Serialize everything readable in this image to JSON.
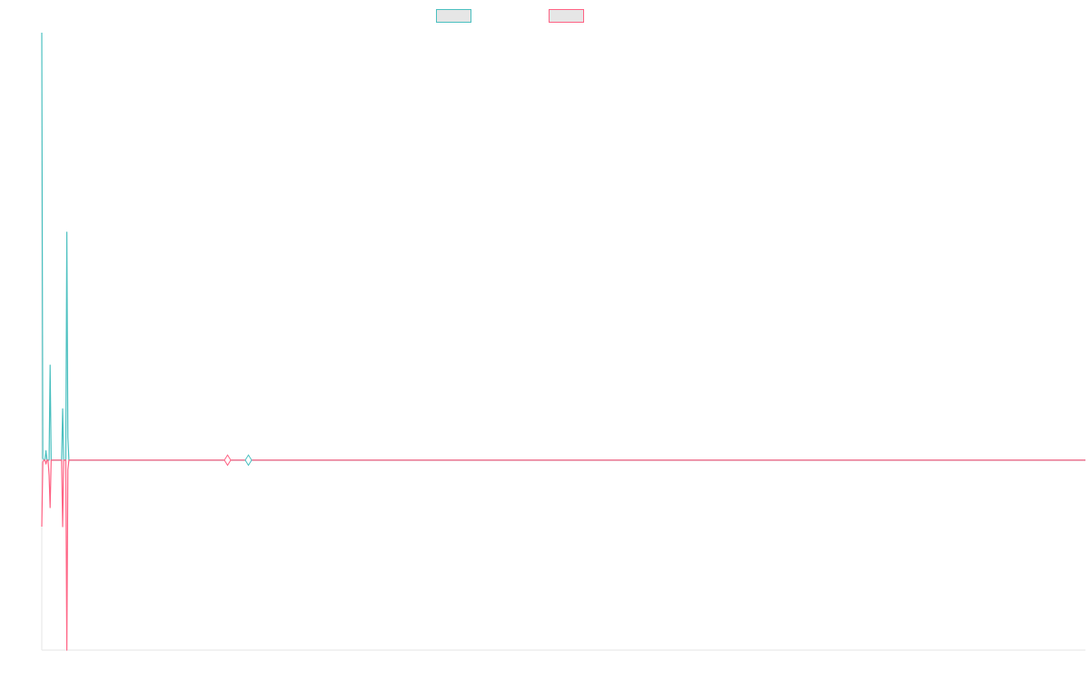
{
  "chart_data": {
    "type": "line",
    "title": "",
    "xlabel": "",
    "ylabel": "",
    "grid": false,
    "legend_placement": "top-center",
    "ylim": [
      -1.0,
      2.25
    ],
    "x": [
      0,
      0.5,
      1,
      1.5,
      2,
      2.5,
      3,
      3.5,
      4,
      4.5,
      5,
      5.5,
      6,
      6.5,
      7,
      7.5,
      8,
      8.5,
      9,
      9.5,
      10,
      10.5,
      11,
      11.5,
      12,
      12.5,
      13,
      13.5,
      14,
      14.5,
      15,
      15.5,
      16,
      16.5,
      17,
      17.5,
      18,
      18.5,
      19,
      19.5,
      20,
      20.5,
      21,
      21.5,
      22,
      30,
      40,
      50,
      60,
      70,
      80,
      90,
      100,
      110,
      120,
      130,
      140,
      150,
      160,
      170,
      180,
      190,
      200,
      210,
      220,
      230,
      240,
      250,
      260,
      270,
      280,
      290,
      300,
      350,
      400,
      450,
      500
    ],
    "series": [
      {
        "name": "",
        "color": "#4bc0c0",
        "values": [
          2.25,
          0.01,
          0,
          0,
          0.05,
          0,
          0,
          0,
          0.5,
          0,
          0,
          0,
          0,
          0,
          0,
          0,
          0,
          0,
          0,
          0,
          0.27,
          0,
          0,
          0,
          1.2,
          0.12,
          0,
          0,
          0,
          0,
          0,
          0,
          0,
          0,
          0,
          0,
          0,
          0,
          0,
          0,
          0,
          0,
          0,
          0,
          0,
          0,
          0,
          0,
          0,
          0,
          0,
          0,
          0,
          0,
          0,
          0,
          0,
          0,
          0,
          0,
          0,
          0,
          0,
          0,
          0,
          0,
          0,
          0,
          0,
          0,
          0,
          0,
          0,
          0,
          0,
          0,
          0
        ]
      },
      {
        "name": "",
        "color": "#ff6384",
        "values": [
          -0.35,
          -0.01,
          0,
          0,
          -0.02,
          0,
          0,
          -0.08,
          -0.25,
          0,
          0,
          0,
          0,
          0,
          0,
          0,
          0,
          0,
          0,
          0,
          -0.35,
          0,
          0,
          0,
          -1.0,
          -0.05,
          0,
          0,
          0,
          0,
          0,
          0,
          0,
          0,
          0,
          0,
          0,
          0,
          0,
          0,
          0,
          0,
          0,
          0,
          0,
          0,
          0,
          0,
          0,
          0,
          0,
          0,
          0,
          0,
          0,
          0,
          0,
          0,
          0,
          0,
          0,
          0,
          0,
          0,
          0,
          0,
          0,
          0,
          0,
          0,
          0,
          0,
          0,
          0,
          0,
          0,
          0
        ]
      }
    ],
    "markers": [
      {
        "x": 89,
        "color": "#ff6384"
      },
      {
        "x": 99,
        "color": "#4bc0c0"
      }
    ]
  }
}
